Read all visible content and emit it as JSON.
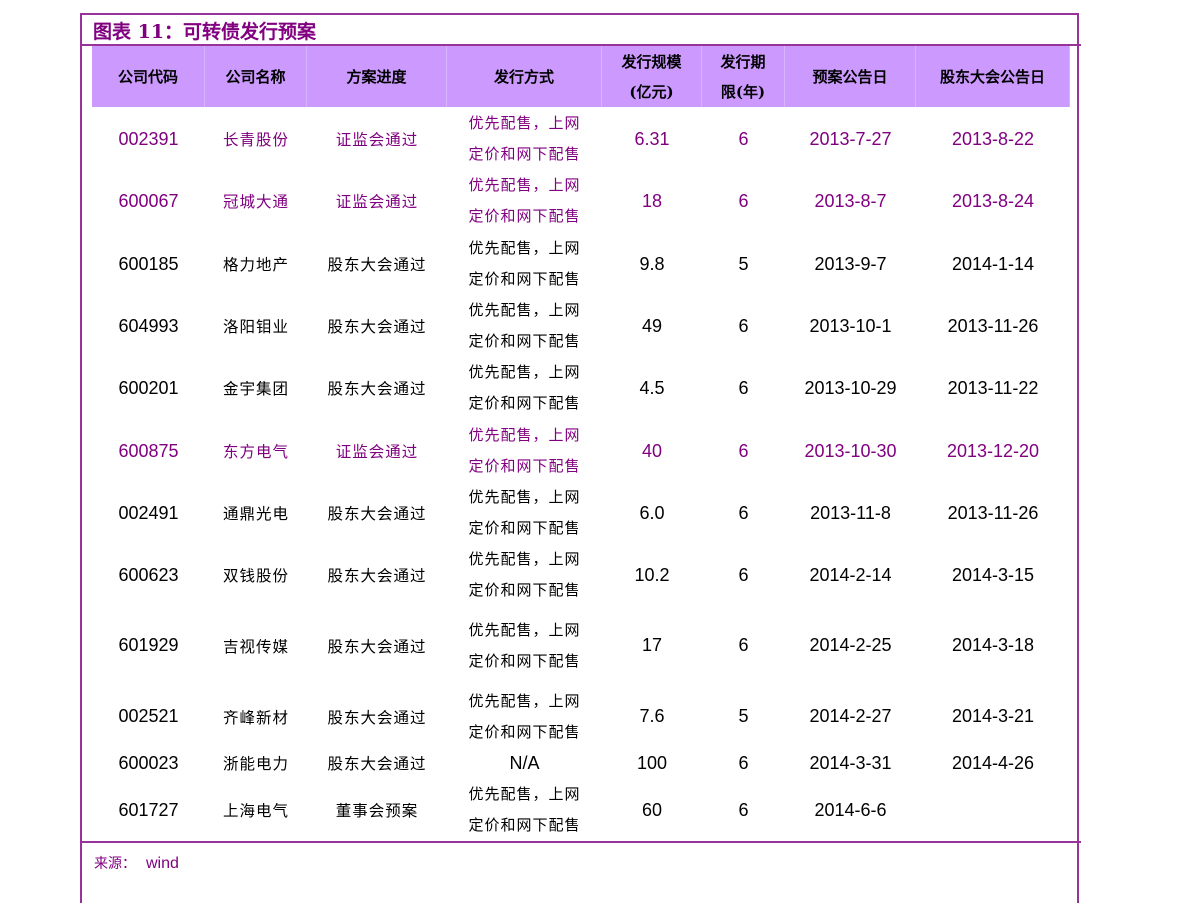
{
  "title": "图表 11：可转债发行预案",
  "colors": {
    "accent": "#800080",
    "header_bg": "#cc99ff",
    "border": "#993399"
  },
  "header": [
    "公司代码",
    "公司名称",
    "方案进度",
    "发行方式",
    [
      "发行规模",
      "(亿元)"
    ],
    [
      "发行期",
      "限(年)"
    ],
    "预案公告日",
    "股东大会公告日"
  ],
  "rows": [
    {
      "code": "002391",
      "name": "长青股份",
      "progress": "证监会通过",
      "method": [
        "优先配售，上网",
        "定价和网下配售"
      ],
      "size": "6.31",
      "term": "6",
      "plan_date": "2013-7-27",
      "meeting_date": "2013-8-22",
      "highlight": true
    },
    {
      "code": "600067",
      "name": "冠城大通",
      "progress": "证监会通过",
      "method": [
        "优先配售，上网",
        "定价和网下配售"
      ],
      "size": "18",
      "term": "6",
      "plan_date": "2013-8-7",
      "meeting_date": "2013-8-24",
      "highlight": true
    },
    {
      "code": "600185",
      "name": "格力地产",
      "progress": "股东大会通过",
      "method": [
        "优先配售，上网",
        "定价和网下配售"
      ],
      "size": "9.8",
      "term": "5",
      "plan_date": "2013-9-7",
      "meeting_date": "2014-1-14",
      "highlight": false
    },
    {
      "code": "604993",
      "name": "洛阳钼业",
      "progress": "股东大会通过",
      "method": [
        "优先配售，上网",
        "定价和网下配售"
      ],
      "size": "49",
      "term": "6",
      "plan_date": "2013-10-1",
      "meeting_date": "2013-11-26",
      "highlight": false
    },
    {
      "code": "600201",
      "name": "金宇集团",
      "progress": "股东大会通过",
      "method": [
        "优先配售，上网",
        "定价和网下配售"
      ],
      "size": "4.5",
      "term": "6",
      "plan_date": "2013-10-29",
      "meeting_date": "2013-11-22",
      "highlight": false
    },
    {
      "code": "600875",
      "name": "东方电气",
      "progress": "证监会通过",
      "method": [
        "优先配售，上网",
        "定价和网下配售"
      ],
      "size": "40",
      "term": "6",
      "plan_date": "2013-10-30",
      "meeting_date": "2013-12-20",
      "highlight": true
    },
    {
      "code": "002491",
      "name": "通鼎光电",
      "progress": "股东大会通过",
      "method": [
        "优先配售，上网",
        "定价和网下配售"
      ],
      "size": "6.0",
      "term": "6",
      "plan_date": "2013-11-8",
      "meeting_date": "2013-11-26",
      "highlight": false
    },
    {
      "code": "600623",
      "name": "双钱股份",
      "progress": "股东大会通过",
      "method": [
        "优先配售，上网",
        "定价和网下配售"
      ],
      "size": "10.2",
      "term": "6",
      "plan_date": "2014-2-14",
      "meeting_date": "2014-3-15",
      "highlight": false
    },
    {
      "code": "601929",
      "name": "吉视传媒",
      "progress": "股东大会通过",
      "method": [
        "优先配售，上网",
        "定价和网下配售"
      ],
      "size": "17",
      "term": "6",
      "plan_date": "2014-2-25",
      "meeting_date": "2014-3-18",
      "highlight": false
    },
    {
      "code": "002521",
      "name": "齐峰新材",
      "progress": "股东大会通过",
      "method": [
        "优先配售，上网",
        "定价和网下配售"
      ],
      "size": "7.6",
      "term": "5",
      "plan_date": "2014-2-27",
      "meeting_date": "2014-3-21",
      "highlight": false
    },
    {
      "code": "600023",
      "name": "浙能电力",
      "progress": "股东大会通过",
      "method": [
        "N/A"
      ],
      "size": "100",
      "term": "6",
      "plan_date": "2014-3-31",
      "meeting_date": "2014-4-26",
      "highlight": false
    },
    {
      "code": "601727",
      "name": "上海电气",
      "progress": "董事会预案",
      "method": [
        "优先配售，上网",
        "定价和网下配售"
      ],
      "size": "60",
      "term": "6",
      "plan_date": "2014-6-6",
      "meeting_date": "",
      "highlight": false
    }
  ],
  "source": {
    "label": "来源：",
    "value": "wind"
  }
}
